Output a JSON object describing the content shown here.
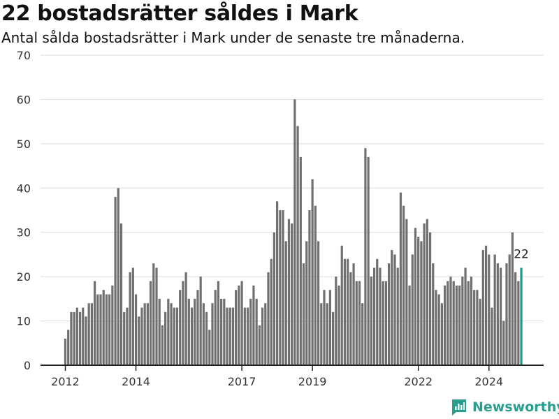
{
  "header": {
    "title": "22 bostadsrätter såldes i Mark",
    "subtitle": "Antal sålda bostadsrätter i Mark under de senaste tre månaderna."
  },
  "brand": {
    "name": "Newsworthy"
  },
  "colors": {
    "bar": "#707070",
    "highlight": "#1f9a8a",
    "grid": "#dcdcdc",
    "axis": "#222222"
  },
  "chart_data": {
    "type": "bar",
    "title": "22 bostadsrätter såldes i Mark",
    "subtitle": "Antal sålda bostadsrätter i Mark under de senaste tre månaderna.",
    "xlabel": "",
    "ylabel": "",
    "ylim": [
      0,
      70
    ],
    "yticks": [
      0,
      10,
      20,
      30,
      40,
      50,
      60,
      70
    ],
    "xticks": [
      "2012",
      "2014",
      "2017",
      "2019",
      "2022",
      "2024"
    ],
    "grid": true,
    "period": "monthly, Jan 2012 – Sep 2024",
    "highlight_label": "22",
    "values": [
      6,
      8,
      12,
      12,
      13,
      12,
      13,
      11,
      14,
      14,
      19,
      16,
      16,
      17,
      16,
      16,
      18,
      38,
      40,
      32,
      12,
      13,
      21,
      22,
      16,
      11,
      13,
      14,
      14,
      19,
      23,
      22,
      15,
      9,
      12,
      15,
      14,
      13,
      13,
      17,
      19,
      21,
      15,
      13,
      15,
      17,
      20,
      14,
      12,
      8,
      14,
      17,
      19,
      15,
      15,
      13,
      13,
      13,
      17,
      18,
      19,
      13,
      13,
      15,
      18,
      15,
      9,
      13,
      14,
      21,
      24,
      30,
      37,
      35,
      35,
      28,
      33,
      32,
      60,
      54,
      47,
      23,
      28,
      35,
      42,
      36,
      28,
      14,
      17,
      14,
      17,
      12,
      20,
      18,
      27,
      24,
      24,
      21,
      23,
      19,
      19,
      14,
      49,
      47,
      20,
      22,
      24,
      22,
      19,
      19,
      23,
      26,
      25,
      22,
      39,
      36,
      33,
      18,
      25,
      31,
      29,
      28,
      32,
      33,
      30,
      23,
      17,
      16,
      14,
      18,
      19,
      20,
      19,
      18,
      18,
      20,
      22,
      19,
      20,
      17,
      17,
      15,
      26,
      27,
      25,
      13,
      25,
      23,
      22,
      10,
      23,
      25,
      30,
      21,
      19,
      22
    ]
  }
}
